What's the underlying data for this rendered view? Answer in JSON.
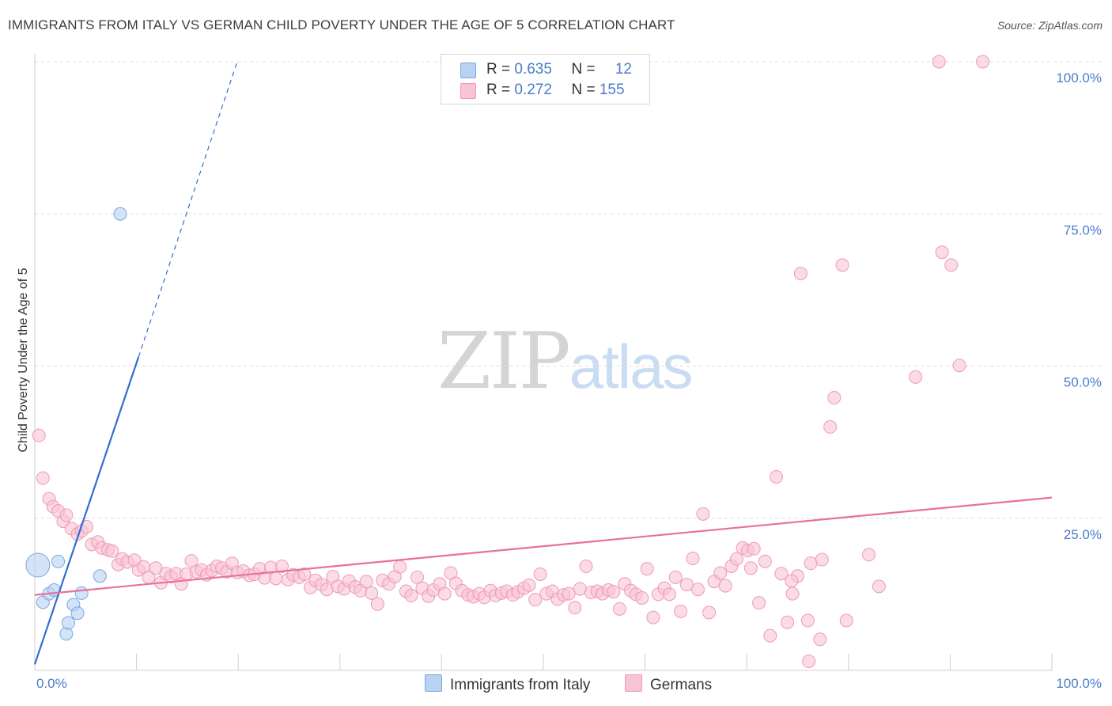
{
  "title": "IMMIGRANTS FROM ITALY VS GERMAN CHILD POVERTY UNDER THE AGE OF 5 CORRELATION CHART",
  "source": "Source: ZipAtlas.com",
  "watermark": {
    "zip": "ZIP",
    "atlas": "atlas"
  },
  "legend": {
    "italy": {
      "r_label": "R = ",
      "r_value": "0.635",
      "n_label": "N = ",
      "n_value": "12"
    },
    "germans": {
      "r_label": "R = ",
      "r_value": "0.272",
      "n_label": "N = ",
      "n_value": "155"
    }
  },
  "colors": {
    "italy_fill": "#b8d2f4",
    "italy_stroke": "#7aa6e0",
    "italy_line": "#2f6fcf",
    "germans_fill": "#f8c3d3",
    "germans_stroke": "#ee9ab4",
    "germans_line": "#e8709a",
    "tick_text": "#4a7cc7",
    "grid": "#dcdcdc"
  },
  "chart_data": {
    "type": "scatter",
    "title": "IMMIGRANTS FROM ITALY VS GERMAN CHILD POVERTY UNDER THE AGE OF 5 CORRELATION CHART",
    "xlabel": "",
    "ylabel": "Child Poverty Under the Age of 5",
    "xlim": [
      0,
      100
    ],
    "ylim": [
      0,
      100
    ],
    "x_tick_labels": [
      "0.0%",
      "100.0%"
    ],
    "y_tick_labels": [
      "100.0%",
      "75.0%",
      "50.0%",
      "25.0%"
    ],
    "y_ticks": [
      100,
      75,
      50,
      25
    ],
    "grid": true,
    "legend_position": "top-center",
    "series": [
      {
        "name": "Immigrants from Italy",
        "R": 0.635,
        "N": 12,
        "points": [
          {
            "x": 0.3,
            "y": 17.3,
            "big": true
          },
          {
            "x": 0.8,
            "y": 11.2
          },
          {
            "x": 1.4,
            "y": 12.6
          },
          {
            "x": 1.9,
            "y": 13.2
          },
          {
            "x": 2.3,
            "y": 17.9
          },
          {
            "x": 3.1,
            "y": 6.0
          },
          {
            "x": 3.3,
            "y": 7.8
          },
          {
            "x": 3.8,
            "y": 10.8
          },
          {
            "x": 4.2,
            "y": 9.4
          },
          {
            "x": 4.6,
            "y": 12.7
          },
          {
            "x": 6.4,
            "y": 15.5
          },
          {
            "x": 8.4,
            "y": 75.0
          }
        ],
        "trend": {
          "x_start": 0.0,
          "y_start": 1.0,
          "x_solid_end": 10.2,
          "y_solid_end": 51.5,
          "x_dash_end": 19.9,
          "y_dash_end": 100.0
        }
      },
      {
        "name": "Germans",
        "R": 0.272,
        "N": 155,
        "points": [
          {
            "x": 0.4,
            "y": 38.6
          },
          {
            "x": 0.8,
            "y": 31.6
          },
          {
            "x": 1.4,
            "y": 28.2
          },
          {
            "x": 1.8,
            "y": 26.9
          },
          {
            "x": 2.3,
            "y": 26.2
          },
          {
            "x": 2.8,
            "y": 24.5
          },
          {
            "x": 3.1,
            "y": 25.5
          },
          {
            "x": 3.6,
            "y": 23.3
          },
          {
            "x": 4.2,
            "y": 22.4
          },
          {
            "x": 4.6,
            "y": 22.9
          },
          {
            "x": 5.1,
            "y": 23.6
          },
          {
            "x": 5.6,
            "y": 20.7
          },
          {
            "x": 6.2,
            "y": 21.1
          },
          {
            "x": 6.6,
            "y": 20.1
          },
          {
            "x": 7.2,
            "y": 19.8
          },
          {
            "x": 7.6,
            "y": 19.6
          },
          {
            "x": 8.2,
            "y": 17.4
          },
          {
            "x": 8.6,
            "y": 18.3
          },
          {
            "x": 9.1,
            "y": 17.8
          },
          {
            "x": 9.8,
            "y": 18.1
          },
          {
            "x": 10.2,
            "y": 16.5
          },
          {
            "x": 10.7,
            "y": 17.0
          },
          {
            "x": 11.2,
            "y": 15.3
          },
          {
            "x": 11.9,
            "y": 16.8
          },
          {
            "x": 12.4,
            "y": 14.4
          },
          {
            "x": 12.9,
            "y": 15.9
          },
          {
            "x": 13.4,
            "y": 15.4
          },
          {
            "x": 13.9,
            "y": 15.9
          },
          {
            "x": 14.4,
            "y": 14.2
          },
          {
            "x": 14.9,
            "y": 15.8
          },
          {
            "x": 15.4,
            "y": 18.0
          },
          {
            "x": 15.9,
            "y": 16.2
          },
          {
            "x": 16.4,
            "y": 16.5
          },
          {
            "x": 16.9,
            "y": 15.7
          },
          {
            "x": 17.4,
            "y": 16.4
          },
          {
            "x": 17.9,
            "y": 17.1
          },
          {
            "x": 18.4,
            "y": 16.8
          },
          {
            "x": 18.9,
            "y": 16.2
          },
          {
            "x": 19.4,
            "y": 17.6
          },
          {
            "x": 19.9,
            "y": 16.1
          },
          {
            "x": 20.5,
            "y": 16.3
          },
          {
            "x": 21.1,
            "y": 15.6
          },
          {
            "x": 21.6,
            "y": 15.8
          },
          {
            "x": 22.1,
            "y": 16.7
          },
          {
            "x": 22.6,
            "y": 15.2
          },
          {
            "x": 23.2,
            "y": 16.9
          },
          {
            "x": 23.7,
            "y": 15.1
          },
          {
            "x": 24.3,
            "y": 17.1
          },
          {
            "x": 24.9,
            "y": 14.9
          },
          {
            "x": 25.4,
            "y": 15.7
          },
          {
            "x": 26.0,
            "y": 15.3
          },
          {
            "x": 26.5,
            "y": 15.8
          },
          {
            "x": 27.1,
            "y": 13.6
          },
          {
            "x": 27.6,
            "y": 14.8
          },
          {
            "x": 28.2,
            "y": 14.1
          },
          {
            "x": 28.7,
            "y": 13.3
          },
          {
            "x": 29.3,
            "y": 15.4
          },
          {
            "x": 29.8,
            "y": 13.8
          },
          {
            "x": 30.4,
            "y": 13.4
          },
          {
            "x": 30.9,
            "y": 14.7
          },
          {
            "x": 31.5,
            "y": 13.7
          },
          {
            "x": 32.0,
            "y": 13.1
          },
          {
            "x": 32.6,
            "y": 14.6
          },
          {
            "x": 33.1,
            "y": 12.7
          },
          {
            "x": 33.7,
            "y": 10.9
          },
          {
            "x": 34.2,
            "y": 14.8
          },
          {
            "x": 34.8,
            "y": 14.2
          },
          {
            "x": 35.4,
            "y": 15.4
          },
          {
            "x": 35.9,
            "y": 17.0
          },
          {
            "x": 36.5,
            "y": 13.0
          },
          {
            "x": 37.0,
            "y": 12.3
          },
          {
            "x": 37.6,
            "y": 15.3
          },
          {
            "x": 38.1,
            "y": 13.5
          },
          {
            "x": 38.7,
            "y": 12.2
          },
          {
            "x": 39.2,
            "y": 13.2
          },
          {
            "x": 39.8,
            "y": 14.2
          },
          {
            "x": 40.3,
            "y": 12.6
          },
          {
            "x": 40.9,
            "y": 16.0
          },
          {
            "x": 41.4,
            "y": 14.3
          },
          {
            "x": 42.0,
            "y": 13.1
          },
          {
            "x": 42.6,
            "y": 12.4
          },
          {
            "x": 43.1,
            "y": 12.1
          },
          {
            "x": 43.7,
            "y": 12.6
          },
          {
            "x": 44.2,
            "y": 12.0
          },
          {
            "x": 44.8,
            "y": 13.1
          },
          {
            "x": 45.3,
            "y": 12.3
          },
          {
            "x": 45.9,
            "y": 12.7
          },
          {
            "x": 46.4,
            "y": 13.0
          },
          {
            "x": 47.0,
            "y": 12.4
          },
          {
            "x": 47.5,
            "y": 12.9
          },
          {
            "x": 48.1,
            "y": 13.5
          },
          {
            "x": 48.6,
            "y": 14.0
          },
          {
            "x": 49.2,
            "y": 11.6
          },
          {
            "x": 49.7,
            "y": 15.8
          },
          {
            "x": 50.3,
            "y": 12.6
          },
          {
            "x": 50.9,
            "y": 13.0
          },
          {
            "x": 51.4,
            "y": 11.7
          },
          {
            "x": 52.0,
            "y": 12.4
          },
          {
            "x": 52.5,
            "y": 12.6
          },
          {
            "x": 53.1,
            "y": 10.3
          },
          {
            "x": 53.6,
            "y": 13.4
          },
          {
            "x": 54.2,
            "y": 17.1
          },
          {
            "x": 54.7,
            "y": 12.8
          },
          {
            "x": 55.3,
            "y": 13.0
          },
          {
            "x": 55.8,
            "y": 12.6
          },
          {
            "x": 56.4,
            "y": 13.2
          },
          {
            "x": 56.9,
            "y": 12.9
          },
          {
            "x": 57.5,
            "y": 10.1
          },
          {
            "x": 58.0,
            "y": 14.2
          },
          {
            "x": 58.6,
            "y": 13.1
          },
          {
            "x": 59.1,
            "y": 12.5
          },
          {
            "x": 59.7,
            "y": 11.9
          },
          {
            "x": 60.2,
            "y": 16.7
          },
          {
            "x": 60.8,
            "y": 8.7
          },
          {
            "x": 61.3,
            "y": 12.5
          },
          {
            "x": 61.9,
            "y": 13.5
          },
          {
            "x": 62.4,
            "y": 12.5
          },
          {
            "x": 63.0,
            "y": 15.3
          },
          {
            "x": 63.5,
            "y": 9.7
          },
          {
            "x": 64.1,
            "y": 14.1
          },
          {
            "x": 64.7,
            "y": 18.4
          },
          {
            "x": 65.2,
            "y": 13.3
          },
          {
            "x": 65.7,
            "y": 25.7
          },
          {
            "x": 66.3,
            "y": 9.5
          },
          {
            "x": 66.8,
            "y": 14.6
          },
          {
            "x": 67.4,
            "y": 16.0
          },
          {
            "x": 67.9,
            "y": 13.9
          },
          {
            "x": 68.5,
            "y": 17.1
          },
          {
            "x": 69.0,
            "y": 18.3
          },
          {
            "x": 69.6,
            "y": 20.1
          },
          {
            "x": 70.1,
            "y": 19.7
          },
          {
            "x": 70.7,
            "y": 20.0
          },
          {
            "x": 71.2,
            "y": 11.1
          },
          {
            "x": 71.8,
            "y": 17.9
          },
          {
            "x": 72.3,
            "y": 5.7
          },
          {
            "x": 72.9,
            "y": 31.8
          },
          {
            "x": 73.4,
            "y": 15.9
          },
          {
            "x": 74.0,
            "y": 7.9
          },
          {
            "x": 74.5,
            "y": 12.6
          },
          {
            "x": 75.0,
            "y": 15.5
          },
          {
            "x": 76.0,
            "y": 8.2
          },
          {
            "x": 76.3,
            "y": 17.6
          },
          {
            "x": 77.4,
            "y": 18.2
          },
          {
            "x": 77.2,
            "y": 5.1
          },
          {
            "x": 78.2,
            "y": 40.0
          },
          {
            "x": 78.6,
            "y": 44.8
          },
          {
            "x": 79.4,
            "y": 66.6
          },
          {
            "x": 82.0,
            "y": 19.0
          },
          {
            "x": 83.0,
            "y": 13.8
          },
          {
            "x": 75.3,
            "y": 65.2
          },
          {
            "x": 90.1,
            "y": 66.6
          },
          {
            "x": 86.6,
            "y": 48.2
          },
          {
            "x": 90.9,
            "y": 50.1
          },
          {
            "x": 76.1,
            "y": 1.5
          },
          {
            "x": 88.9,
            "y": 100.0
          },
          {
            "x": 93.2,
            "y": 100.0
          },
          {
            "x": 89.2,
            "y": 68.7
          },
          {
            "x": 79.8,
            "y": 8.2
          },
          {
            "x": 70.4,
            "y": 16.8
          },
          {
            "x": 74.4,
            "y": 14.7
          }
        ],
        "trend": {
          "x_start": 0.0,
          "y_start": 12.4,
          "x_end": 100.0,
          "y_end": 28.4
        }
      }
    ]
  },
  "bottom_legend": [
    {
      "label": "Immigrants from Italy"
    },
    {
      "label": "Germans"
    }
  ]
}
